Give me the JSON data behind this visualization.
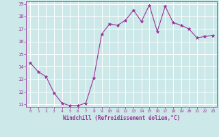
{
  "x": [
    0,
    1,
    2,
    3,
    4,
    5,
    6,
    7,
    8,
    9,
    10,
    11,
    12,
    13,
    14,
    15,
    16,
    17,
    18,
    19,
    20,
    21,
    22,
    23
  ],
  "y": [
    14.3,
    13.6,
    13.2,
    11.9,
    11.1,
    10.9,
    10.9,
    11.1,
    13.1,
    16.6,
    17.4,
    17.3,
    17.7,
    18.5,
    17.6,
    18.9,
    16.8,
    18.8,
    17.5,
    17.3,
    17.0,
    16.3,
    16.4,
    16.5
  ],
  "line_color": "#993399",
  "marker": "*",
  "marker_size": 3.5,
  "bg_color": "#cce8e8",
  "grid_color": "#ffffff",
  "xlabel": "Windchill (Refroidissement éolien,°C)",
  "xlabel_color": "#993399",
  "tick_color": "#993399",
  "ylim": [
    11,
    19
  ],
  "xlim": [
    -0.5,
    23.5
  ],
  "yticks": [
    11,
    12,
    13,
    14,
    15,
    16,
    17,
    18,
    19
  ],
  "xticks": [
    0,
    1,
    2,
    3,
    4,
    5,
    6,
    7,
    8,
    9,
    10,
    11,
    12,
    13,
    14,
    15,
    16,
    17,
    18,
    19,
    20,
    21,
    22,
    23
  ],
  "figsize": [
    3.2,
    2.0
  ],
  "dpi": 100
}
